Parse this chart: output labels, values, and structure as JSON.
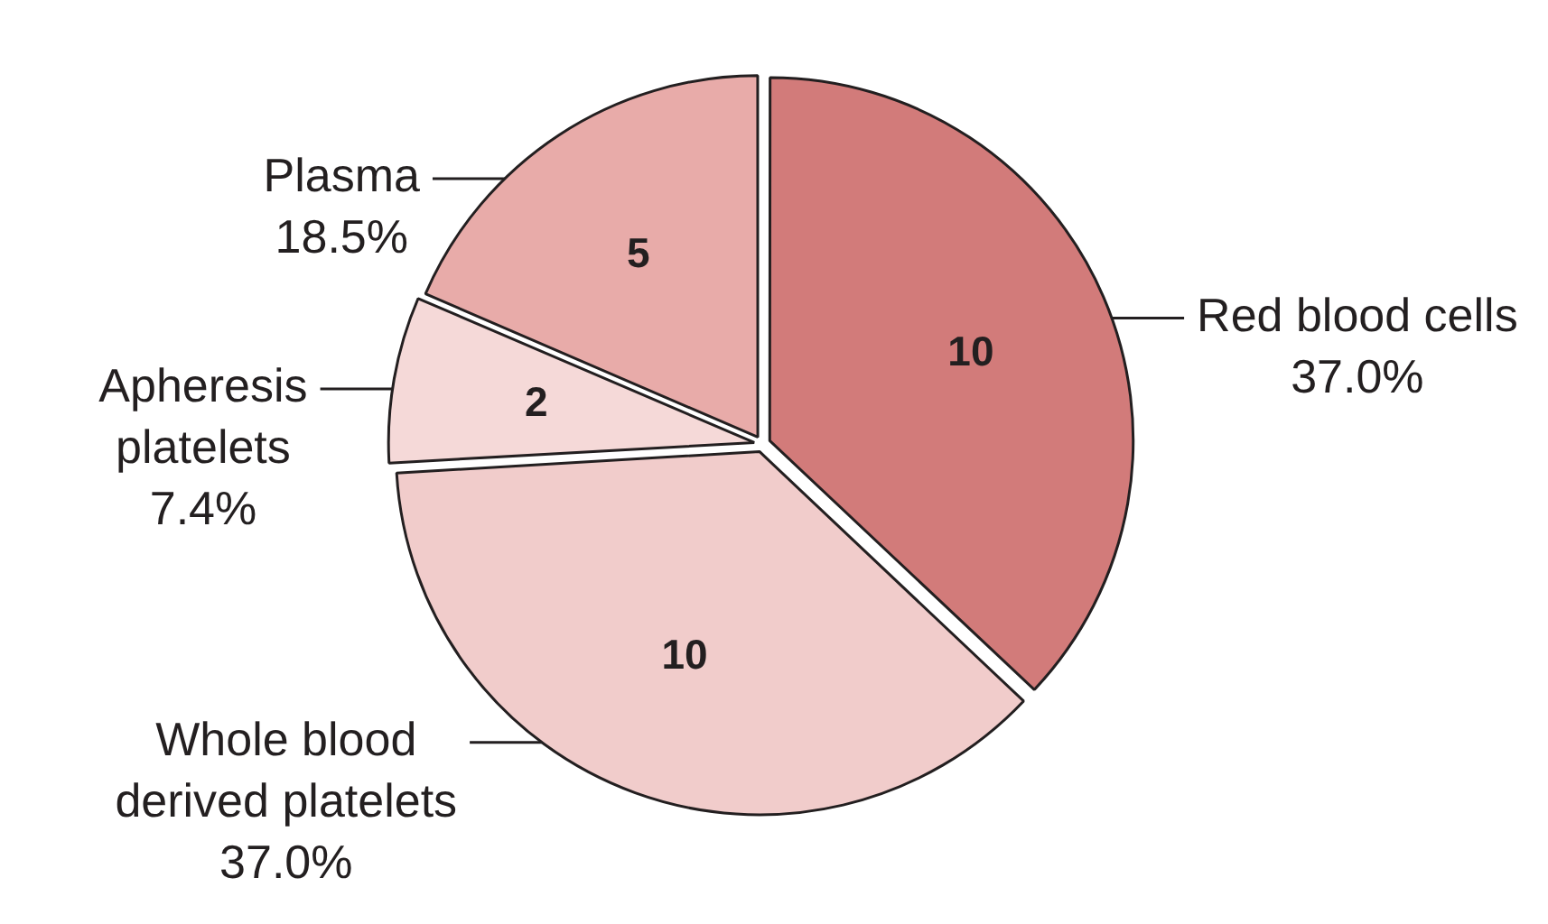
{
  "chart_data": {
    "type": "pie",
    "categories": [
      "Red blood cells",
      "Whole blood derived platelets",
      "Apheresis platelets",
      "Plasma"
    ],
    "values": [
      10,
      10,
      2,
      5
    ],
    "colors": [
      "#d27b7a",
      "#f1cccb",
      "#f5d9d8",
      "#e8aba9"
    ],
    "data_labels": true,
    "annotations": [
      {
        "text": "37.0%",
        "x": "Red blood cells"
      },
      {
        "text": "37.0%",
        "x": "Whole blood derived platelets"
      },
      {
        "text": "7.4%",
        "x": "Apheresis platelets"
      },
      {
        "text": "18.5%",
        "x": "Plasma"
      }
    ],
    "legend": false
  }
}
